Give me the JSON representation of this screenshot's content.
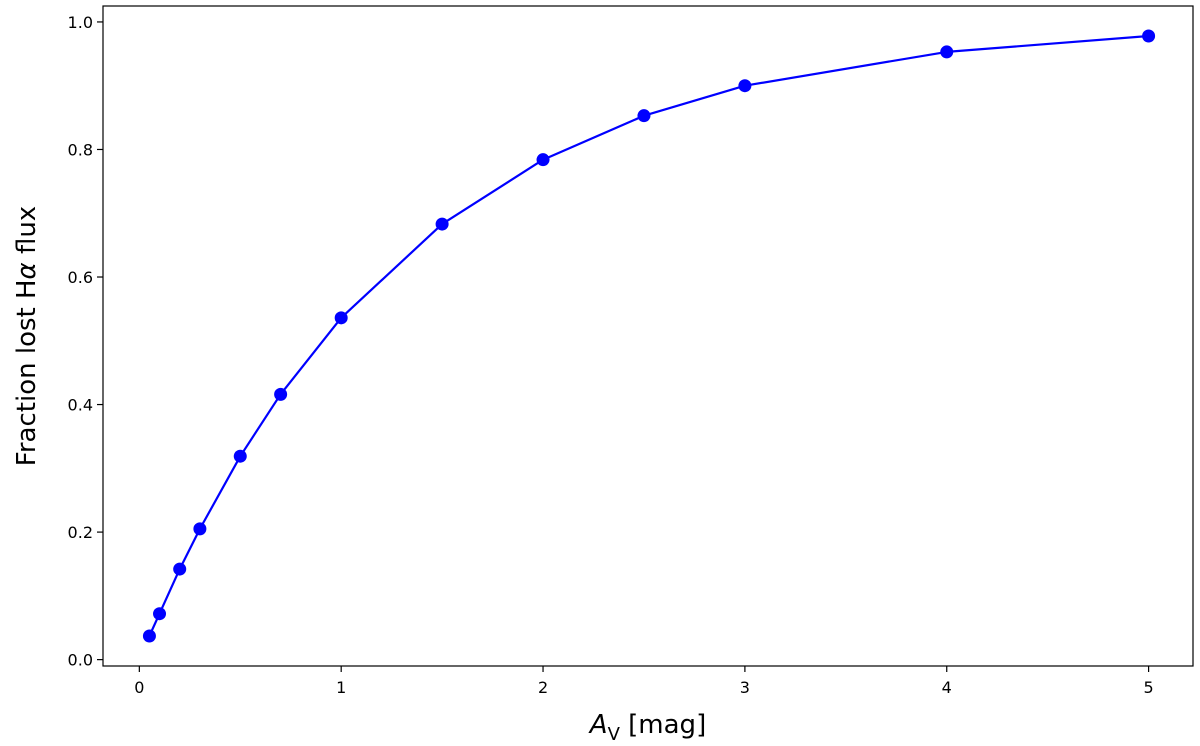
{
  "chart_data": {
    "type": "line",
    "xlabel": {
      "main": "A",
      "subscript": "V",
      "rest": " [mag]"
    },
    "ylabel": {
      "before": "Fraction lost H",
      "greek": "α",
      "after": " flux"
    },
    "xlim": [
      -0.18,
      5.22
    ],
    "ylim": [
      -0.01,
      1.025
    ],
    "x_ticks": [
      0,
      1,
      2,
      3,
      4,
      5
    ],
    "x_tick_labels": [
      "0",
      "1",
      "2",
      "3",
      "4",
      "5"
    ],
    "y_ticks": [
      0.0,
      0.2,
      0.4,
      0.6,
      0.8,
      1.0
    ],
    "y_tick_labels": [
      "0.0",
      "0.2",
      "0.4",
      "0.6",
      "0.8",
      "1.0"
    ],
    "grid": false,
    "series": [
      {
        "color": "#0000ff",
        "marker": "circle",
        "x": [
          0.05,
          0.1,
          0.2,
          0.3,
          0.5,
          0.7,
          1.0,
          1.5,
          2.0,
          2.5,
          3.0,
          4.0,
          5.0
        ],
        "y": [
          0.037,
          0.072,
          0.142,
          0.205,
          0.319,
          0.416,
          0.536,
          0.683,
          0.784,
          0.853,
          0.9,
          0.953,
          0.978
        ]
      }
    ]
  }
}
